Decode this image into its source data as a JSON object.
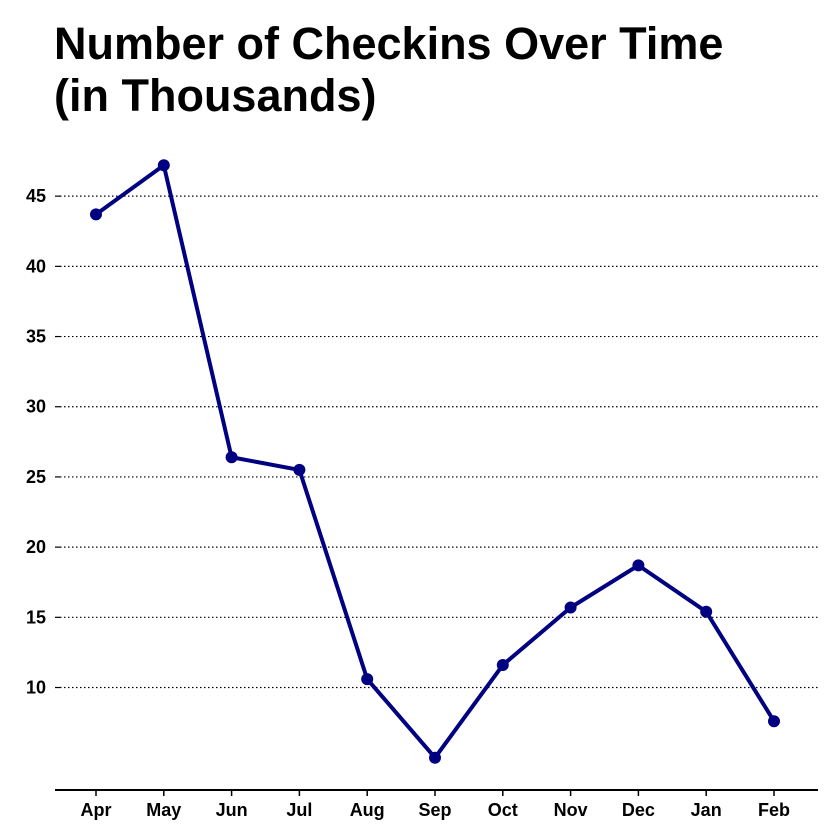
{
  "chart_data": {
    "type": "line",
    "title_lines": [
      "Number of Checkins Over Time",
      "(in Thousands)"
    ],
    "xlabel": "",
    "ylabel": "",
    "categories": [
      "Apr",
      "May",
      "Jun",
      "Jul",
      "Aug",
      "Sep",
      "Oct",
      "Nov",
      "Dec",
      "Jan",
      "Feb"
    ],
    "series": [
      {
        "values": [
          43.7,
          47.2,
          26.4,
          25.5,
          10.6,
          5.0,
          11.6,
          15.7,
          18.7,
          15.4,
          7.6
        ]
      }
    ],
    "yticks": [
      10,
      15,
      20,
      25,
      30,
      35,
      40,
      45
    ],
    "ylim": [
      2.7,
      49
    ],
    "grid": "horizontal dotted",
    "legend": "none",
    "line_color": "#000080"
  }
}
